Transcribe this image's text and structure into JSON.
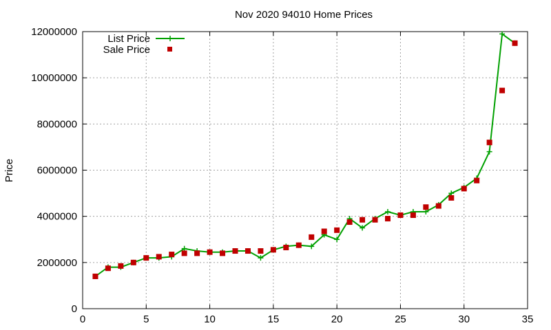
{
  "chart_data": {
    "type": "line",
    "title": "Nov 2020 94010 Home Prices",
    "xlabel": "",
    "ylabel": "Price",
    "xlim": [
      0,
      35
    ],
    "ylim": [
      0,
      12000000
    ],
    "x_ticks": [
      "0",
      "5",
      "10",
      "15",
      "20",
      "25",
      "30",
      "35"
    ],
    "y_ticks": [
      "0",
      "2000000",
      "4000000",
      "6000000",
      "8000000",
      "10000000",
      "12000000"
    ],
    "grid": true,
    "legend_position": "top-left",
    "x": [
      1,
      2,
      3,
      4,
      5,
      6,
      7,
      8,
      9,
      10,
      11,
      12,
      13,
      14,
      15,
      16,
      17,
      18,
      19,
      20,
      21,
      22,
      23,
      24,
      25,
      26,
      27,
      28,
      29,
      30,
      31,
      32,
      33,
      34
    ],
    "series": [
      {
        "name": "List Price",
        "style": "line-cross",
        "color": "#00a000",
        "values": [
          1400000,
          1800000,
          1800000,
          2000000,
          2200000,
          2200000,
          2250000,
          2600000,
          2500000,
          2450000,
          2450000,
          2500000,
          2500000,
          2200000,
          2550000,
          2700000,
          2750000,
          2700000,
          3200000,
          3000000,
          3900000,
          3500000,
          3900000,
          4200000,
          4050000,
          4200000,
          4200000,
          4500000,
          5000000,
          5250000,
          5650000,
          6800000,
          11900000,
          11500000
        ]
      },
      {
        "name": "Sale Price",
        "style": "square",
        "color": "#c00000",
        "values": [
          1400000,
          1750000,
          1850000,
          2000000,
          2200000,
          2250000,
          2350000,
          2400000,
          2400000,
          2450000,
          2400000,
          2500000,
          2500000,
          2500000,
          2550000,
          2650000,
          2750000,
          3100000,
          3350000,
          3400000,
          3750000,
          3850000,
          3850000,
          3900000,
          4050000,
          4050000,
          4400000,
          4450000,
          4800000,
          5200000,
          5550000,
          7200000,
          9450000,
          11500000
        ]
      }
    ]
  }
}
